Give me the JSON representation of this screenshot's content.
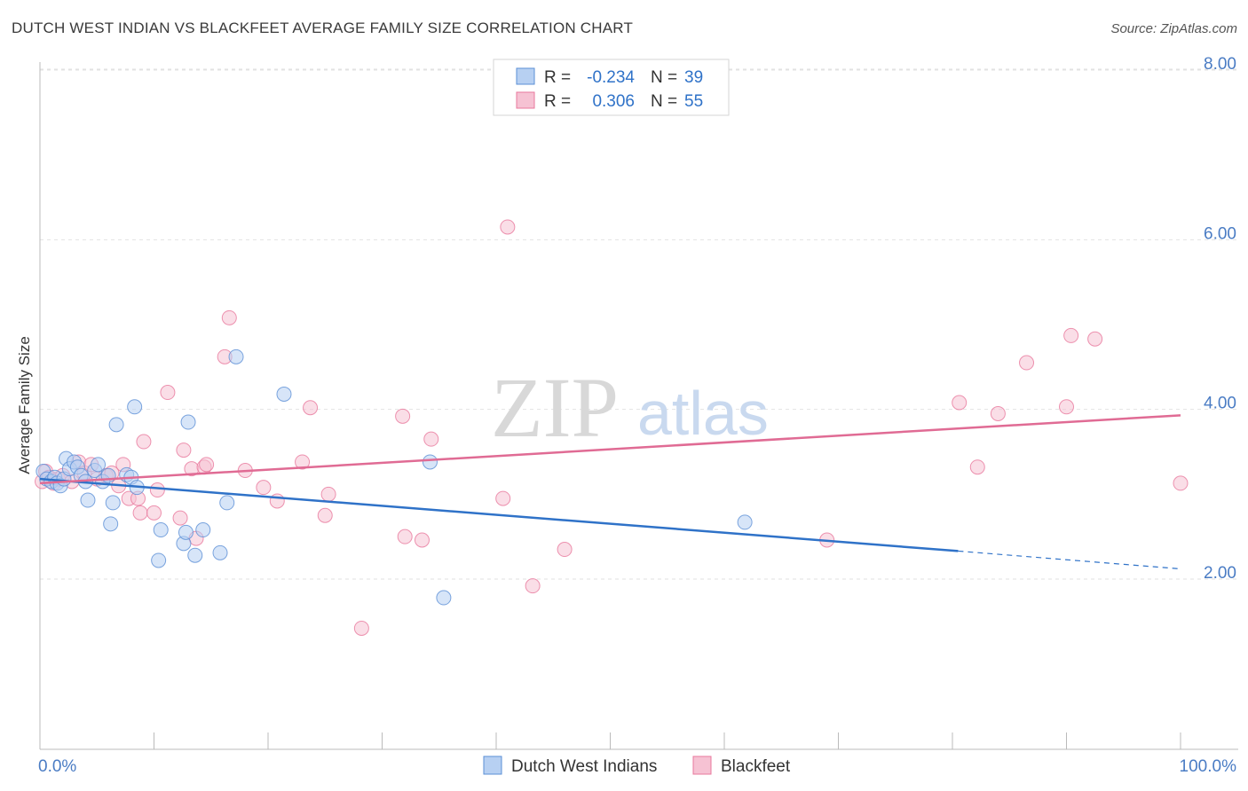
{
  "title": "DUTCH WEST INDIAN VS BLACKFEET AVERAGE FAMILY SIZE CORRELATION CHART",
  "source": "Source: ZipAtlas.com",
  "watermark": {
    "zip": "ZIP",
    "atlas": "atlas"
  },
  "colors": {
    "blue": "#5b8fd6",
    "blue_fill": "#b7d0f2",
    "blue_line": "#2f72c8",
    "pink": "#e8789c",
    "pink_fill": "#f6c2d3",
    "pink_line": "#e06b94",
    "tick_text": "#4a7cc4"
  },
  "legend": {
    "rows": [
      {
        "r_label": "R =",
        "r_value": "-0.234",
        "n_label": "N =",
        "n_value": "39"
      },
      {
        "r_label": "R =",
        "r_value": "0.306",
        "n_label": "N =",
        "n_value": "55"
      }
    ]
  },
  "bottom_legend": [
    "Dutch West Indians",
    "Blackfeet"
  ],
  "chart_data": {
    "type": "scatter",
    "title": "DUTCH WEST INDIAN VS BLACKFEET AVERAGE FAMILY SIZE CORRELATION CHART",
    "xlabel": "",
    "ylabel": "Average Family Size",
    "xlim": [
      0,
      100
    ],
    "ylim": [
      0.2,
      8.2
    ],
    "x_tick_labels": [
      "0.0%",
      "100.0%"
    ],
    "y_ticks": [
      2,
      4,
      6,
      8
    ],
    "y_tick_labels": [
      "2.00",
      "4.00",
      "6.00",
      "8.00"
    ],
    "grid": true,
    "legend_position": "top-center",
    "series": [
      {
        "name": "Dutch West Indians",
        "r": -0.234,
        "n": 39,
        "trend": {
          "x0": 0,
          "y0": 3.18,
          "x1": 80.5,
          "y1": 2.33,
          "dash_to_x": 100,
          "dash_to_y": 2.12
        },
        "points": [
          [
            0.3,
            3.27
          ],
          [
            0.6,
            3.18
          ],
          [
            1.0,
            3.15
          ],
          [
            1.3,
            3.2
          ],
          [
            1.5,
            3.13
          ],
          [
            1.8,
            3.1
          ],
          [
            2.1,
            3.18
          ],
          [
            2.3,
            3.42
          ],
          [
            2.6,
            3.3
          ],
          [
            3.0,
            3.38
          ],
          [
            3.3,
            3.32
          ],
          [
            3.6,
            3.22
          ],
          [
            4.0,
            3.15
          ],
          [
            4.2,
            2.93
          ],
          [
            4.8,
            3.28
          ],
          [
            5.1,
            3.35
          ],
          [
            5.5,
            3.15
          ],
          [
            6.0,
            3.22
          ],
          [
            6.2,
            2.65
          ],
          [
            6.4,
            2.9
          ],
          [
            6.7,
            3.82
          ],
          [
            7.6,
            3.23
          ],
          [
            8.0,
            3.2
          ],
          [
            8.3,
            4.03
          ],
          [
            8.5,
            3.08
          ],
          [
            10.4,
            2.22
          ],
          [
            10.6,
            2.58
          ],
          [
            12.6,
            2.42
          ],
          [
            12.8,
            2.55
          ],
          [
            13.0,
            3.85
          ],
          [
            13.6,
            2.28
          ],
          [
            14.3,
            2.58
          ],
          [
            15.8,
            2.31
          ],
          [
            16.4,
            2.9
          ],
          [
            17.2,
            4.62
          ],
          [
            21.4,
            4.18
          ],
          [
            34.2,
            3.38
          ],
          [
            35.4,
            1.78
          ],
          [
            61.8,
            2.67
          ]
        ]
      },
      {
        "name": "Blackfeet",
        "r": 0.306,
        "n": 55,
        "trend": {
          "x0": 0,
          "y0": 3.13,
          "x1": 100,
          "y1": 3.93
        },
        "points": [
          [
            0.2,
            3.15
          ],
          [
            0.5,
            3.27
          ],
          [
            0.8,
            3.2
          ],
          [
            1.2,
            3.13
          ],
          [
            1.6,
            3.18
          ],
          [
            2.0,
            3.22
          ],
          [
            2.8,
            3.15
          ],
          [
            3.4,
            3.38
          ],
          [
            3.9,
            3.25
          ],
          [
            4.5,
            3.35
          ],
          [
            5.0,
            3.18
          ],
          [
            5.8,
            3.22
          ],
          [
            6.3,
            3.25
          ],
          [
            6.9,
            3.1
          ],
          [
            7.3,
            3.35
          ],
          [
            7.8,
            2.95
          ],
          [
            8.6,
            2.95
          ],
          [
            8.8,
            2.78
          ],
          [
            9.1,
            3.62
          ],
          [
            10.0,
            2.78
          ],
          [
            10.3,
            3.05
          ],
          [
            11.2,
            4.2
          ],
          [
            12.3,
            2.72
          ],
          [
            12.6,
            3.52
          ],
          [
            13.3,
            3.3
          ],
          [
            13.7,
            2.48
          ],
          [
            14.4,
            3.32
          ],
          [
            14.6,
            3.35
          ],
          [
            16.2,
            4.62
          ],
          [
            16.6,
            5.08
          ],
          [
            18.0,
            3.28
          ],
          [
            19.6,
            3.08
          ],
          [
            20.8,
            2.92
          ],
          [
            23.0,
            3.38
          ],
          [
            23.7,
            4.02
          ],
          [
            25.0,
            2.75
          ],
          [
            25.3,
            3.0
          ],
          [
            28.2,
            1.42
          ],
          [
            31.8,
            3.92
          ],
          [
            32.0,
            2.5
          ],
          [
            33.5,
            2.46
          ],
          [
            34.3,
            3.65
          ],
          [
            40.6,
            2.95
          ],
          [
            41.0,
            6.15
          ],
          [
            43.2,
            1.92
          ],
          [
            46.0,
            2.35
          ],
          [
            69.0,
            2.46
          ],
          [
            80.6,
            4.08
          ],
          [
            82.2,
            3.32
          ],
          [
            84.0,
            3.95
          ],
          [
            86.5,
            4.55
          ],
          [
            90.0,
            4.03
          ],
          [
            90.4,
            4.87
          ],
          [
            92.5,
            4.83
          ],
          [
            100.0,
            3.13
          ]
        ]
      }
    ]
  }
}
